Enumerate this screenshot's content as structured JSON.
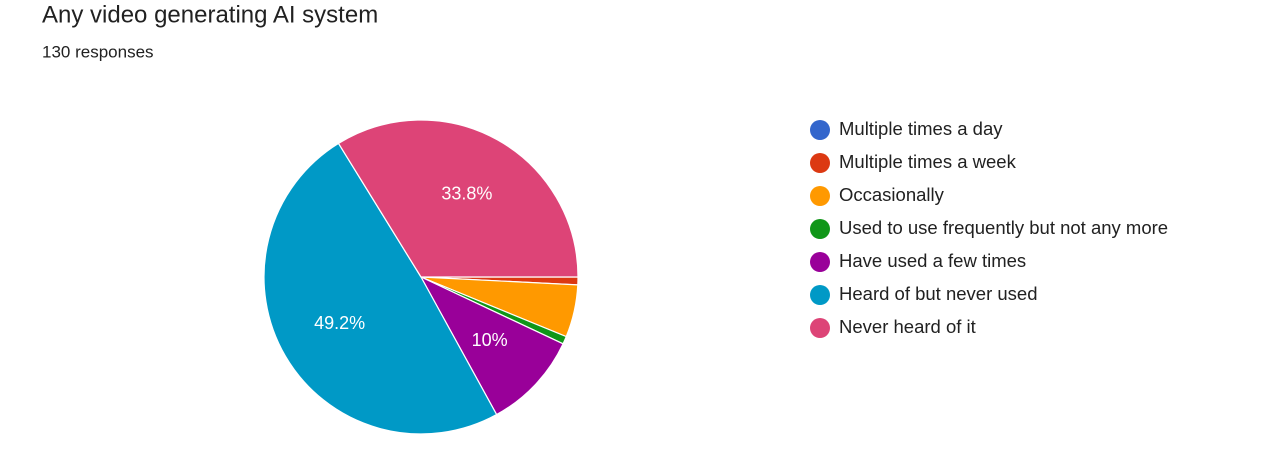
{
  "chart_data": {
    "type": "pie",
    "title": "Any video generating AI system",
    "subtitle": "130 responses",
    "categories": [
      "Multiple times a day",
      "Multiple times a week",
      "Occasionally",
      "Used to use frequently but not any more",
      "Have used a few times",
      "Heard of but never used",
      "Never heard of it"
    ],
    "values": [
      0,
      0.8,
      5.4,
      0.8,
      10,
      49.2,
      33.8
    ],
    "value_labels": [
      null,
      null,
      null,
      null,
      "10%",
      "49.2%",
      "33.8%"
    ],
    "colors": [
      "#3366cc",
      "#dc3912",
      "#ff9900",
      "#109618",
      "#990099",
      "#0099c6",
      "#dd4477"
    ],
    "legend": "right"
  }
}
